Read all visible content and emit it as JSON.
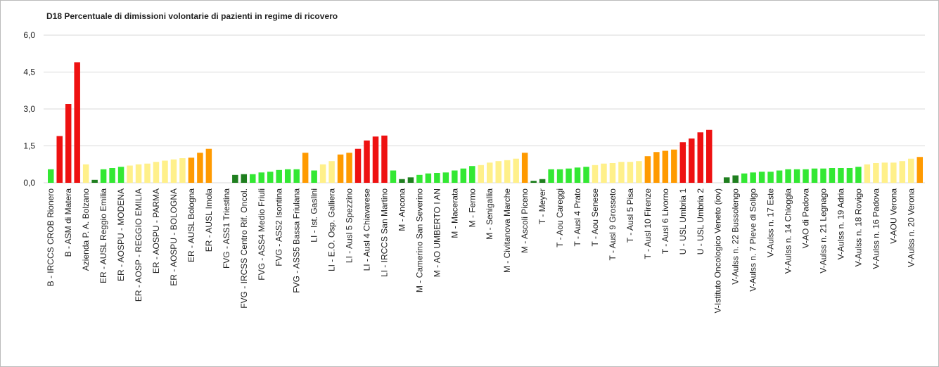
{
  "chart_data": {
    "type": "bar",
    "title": "D18 Percentuale di dimissioni volontarie di pazienti in regime di ricovero",
    "categories": [
      "B - IRCCS CROB Rionero",
      null,
      "B - ASM di Matera",
      null,
      "Azienda P. A. Bolzano",
      null,
      "ER - AUSL Reggio Emilia",
      null,
      "ER - AOSPU - MODENA",
      null,
      "ER - AOSP - REGGIO EMILIA",
      null,
      "ER - AOSPU - PARMA",
      null,
      "ER - AOSPU - BOLOGNA",
      null,
      "ER - AUSL Bologna",
      null,
      "ER - AUSL Imola",
      null,
      "FVG - ASS1 Triestina",
      null,
      "FVG - IRCSS Centro Rif. Oncol.",
      null,
      "FVG - ASS4 Medio Friuli",
      null,
      "FVG - ASS2 Isontina",
      null,
      "FVG - ASS5 Bassa Friulana",
      null,
      "LI - Ist. Gaslini",
      null,
      "LI - E.O. Osp. Galliera",
      null,
      "LI - Ausl 5 Spezzino",
      null,
      "LI - Ausl 4 Chiavarese",
      null,
      "LI - IRCCS San Martino",
      null,
      "M - Ancona",
      null,
      "M - Camerino San Severino",
      null,
      "M - AO UMBERTO I AN",
      null,
      "M - Macerata",
      null,
      "M - Fermo",
      null,
      "M - Senigallia",
      null,
      "M - Civitanova Marche",
      null,
      "M - Ascoli Piceno",
      null,
      "T - Meyer",
      null,
      "T - Aou Careggi",
      null,
      "T - Ausl 4 Prato",
      null,
      "T - Aou Senese",
      null,
      "T - Ausl 9 Grosseto",
      null,
      "T - Ausl 5 Pisa",
      null,
      "T - Ausl 10 Firenze",
      null,
      "T - Ausl 6 Livorno",
      null,
      "U - USL Umbria 1",
      null,
      "U - USL Umbria 2",
      null,
      "V-Istituto Oncologico Veneto (iov)",
      null,
      "V-Aulss n. 22 Bussolengo",
      null,
      "V-Aulss n. 7 Pieve di Soligo",
      null,
      "V-Aulss n. 17 Este",
      null,
      "V-Aulss n. 14 Chioggia",
      null,
      "V-AO di Padova",
      null,
      "V-Aulss n. 21 Legnago",
      null,
      "V-Aulss n. 19 Adria",
      null,
      "V-Aulss n. 18 Rovigo",
      null,
      "V-Aulss n. 16 Padova",
      null,
      "V-AOU Verona",
      null,
      "V-Aulss n. 20 Verona",
      null
    ],
    "values": [
      0.55,
      1.9,
      3.2,
      4.9,
      0.75,
      0.12,
      0.55,
      0.6,
      0.65,
      0.7,
      0.75,
      0.78,
      0.85,
      0.9,
      0.95,
      1.0,
      1.02,
      1.22,
      1.38,
      null,
      null,
      0.32,
      0.35,
      0.35,
      0.42,
      0.45,
      0.52,
      0.55,
      0.55,
      1.22,
      0.5,
      0.75,
      0.88,
      1.15,
      1.22,
      1.38,
      1.72,
      1.88,
      1.92,
      0.5,
      0.15,
      0.22,
      0.32,
      0.38,
      0.4,
      0.42,
      0.5,
      0.58,
      0.68,
      0.72,
      0.82,
      0.88,
      0.92,
      0.98,
      1.22,
      0.08,
      0.15,
      0.55,
      0.55,
      0.58,
      0.62,
      0.65,
      0.72,
      0.78,
      0.8,
      0.85,
      0.85,
      0.88,
      1.08,
      1.25,
      1.3,
      1.35,
      1.65,
      1.8,
      2.05,
      2.15,
      null,
      0.22,
      0.3,
      0.38,
      0.42,
      0.45,
      0.45,
      0.5,
      0.55,
      0.55,
      0.55,
      0.58,
      0.58,
      0.6,
      0.6,
      0.6,
      0.65,
      0.75,
      0.8,
      0.82,
      0.82,
      0.88,
      0.98,
      1.05
    ],
    "colors": [
      "#33e833",
      "#ee1111",
      "#ee1111",
      "#ee1111",
      "#fff08a",
      "#1f7f1f",
      "#33e833",
      "#33e833",
      "#33e833",
      "#fff08a",
      "#fff08a",
      "#fff08a",
      "#fff08a",
      "#fff08a",
      "#fff08a",
      "#fff08a",
      "#ff9a00",
      "#ff9a00",
      "#ff9a00",
      null,
      null,
      "#1f7f1f",
      "#1f7f1f",
      "#33e833",
      "#33e833",
      "#33e833",
      "#33e833",
      "#33e833",
      "#33e833",
      "#ff9a00",
      "#33e833",
      "#fff08a",
      "#fff08a",
      "#ff9a00",
      "#ff9a00",
      "#ee1111",
      "#ee1111",
      "#ee1111",
      "#ee1111",
      "#33e833",
      "#1f7f1f",
      "#1f7f1f",
      "#33e833",
      "#33e833",
      "#33e833",
      "#33e833",
      "#33e833",
      "#33e833",
      "#33e833",
      "#fff08a",
      "#fff08a",
      "#fff08a",
      "#fff08a",
      "#fff08a",
      "#ff9a00",
      "#1f7f1f",
      "#1f7f1f",
      "#33e833",
      "#33e833",
      "#33e833",
      "#33e833",
      "#33e833",
      "#fff08a",
      "#fff08a",
      "#fff08a",
      "#fff08a",
      "#fff08a",
      "#fff08a",
      "#ff9a00",
      "#ff9a00",
      "#ff9a00",
      "#ff9a00",
      "#ee1111",
      "#ee1111",
      "#ee1111",
      "#ee1111",
      null,
      "#1f7f1f",
      "#1f7f1f",
      "#33e833",
      "#33e833",
      "#33e833",
      "#33e833",
      "#33e833",
      "#33e833",
      "#33e833",
      "#33e833",
      "#33e833",
      "#33e833",
      "#33e833",
      "#33e833",
      "#33e833",
      "#33e833",
      "#fff08a",
      "#fff08a",
      "#fff08a",
      "#fff08a",
      "#fff08a",
      "#fff08a",
      "#ff9a00"
    ],
    "ylim": [
      0,
      6
    ],
    "yticks": [
      {
        "value": 0,
        "label": "0,0"
      },
      {
        "value": 1.5,
        "label": "1,5"
      },
      {
        "value": 3,
        "label": "3,0"
      },
      {
        "value": 4.5,
        "label": "4,5"
      },
      {
        "value": 6,
        "label": "6,0"
      }
    ],
    "grid": true
  }
}
